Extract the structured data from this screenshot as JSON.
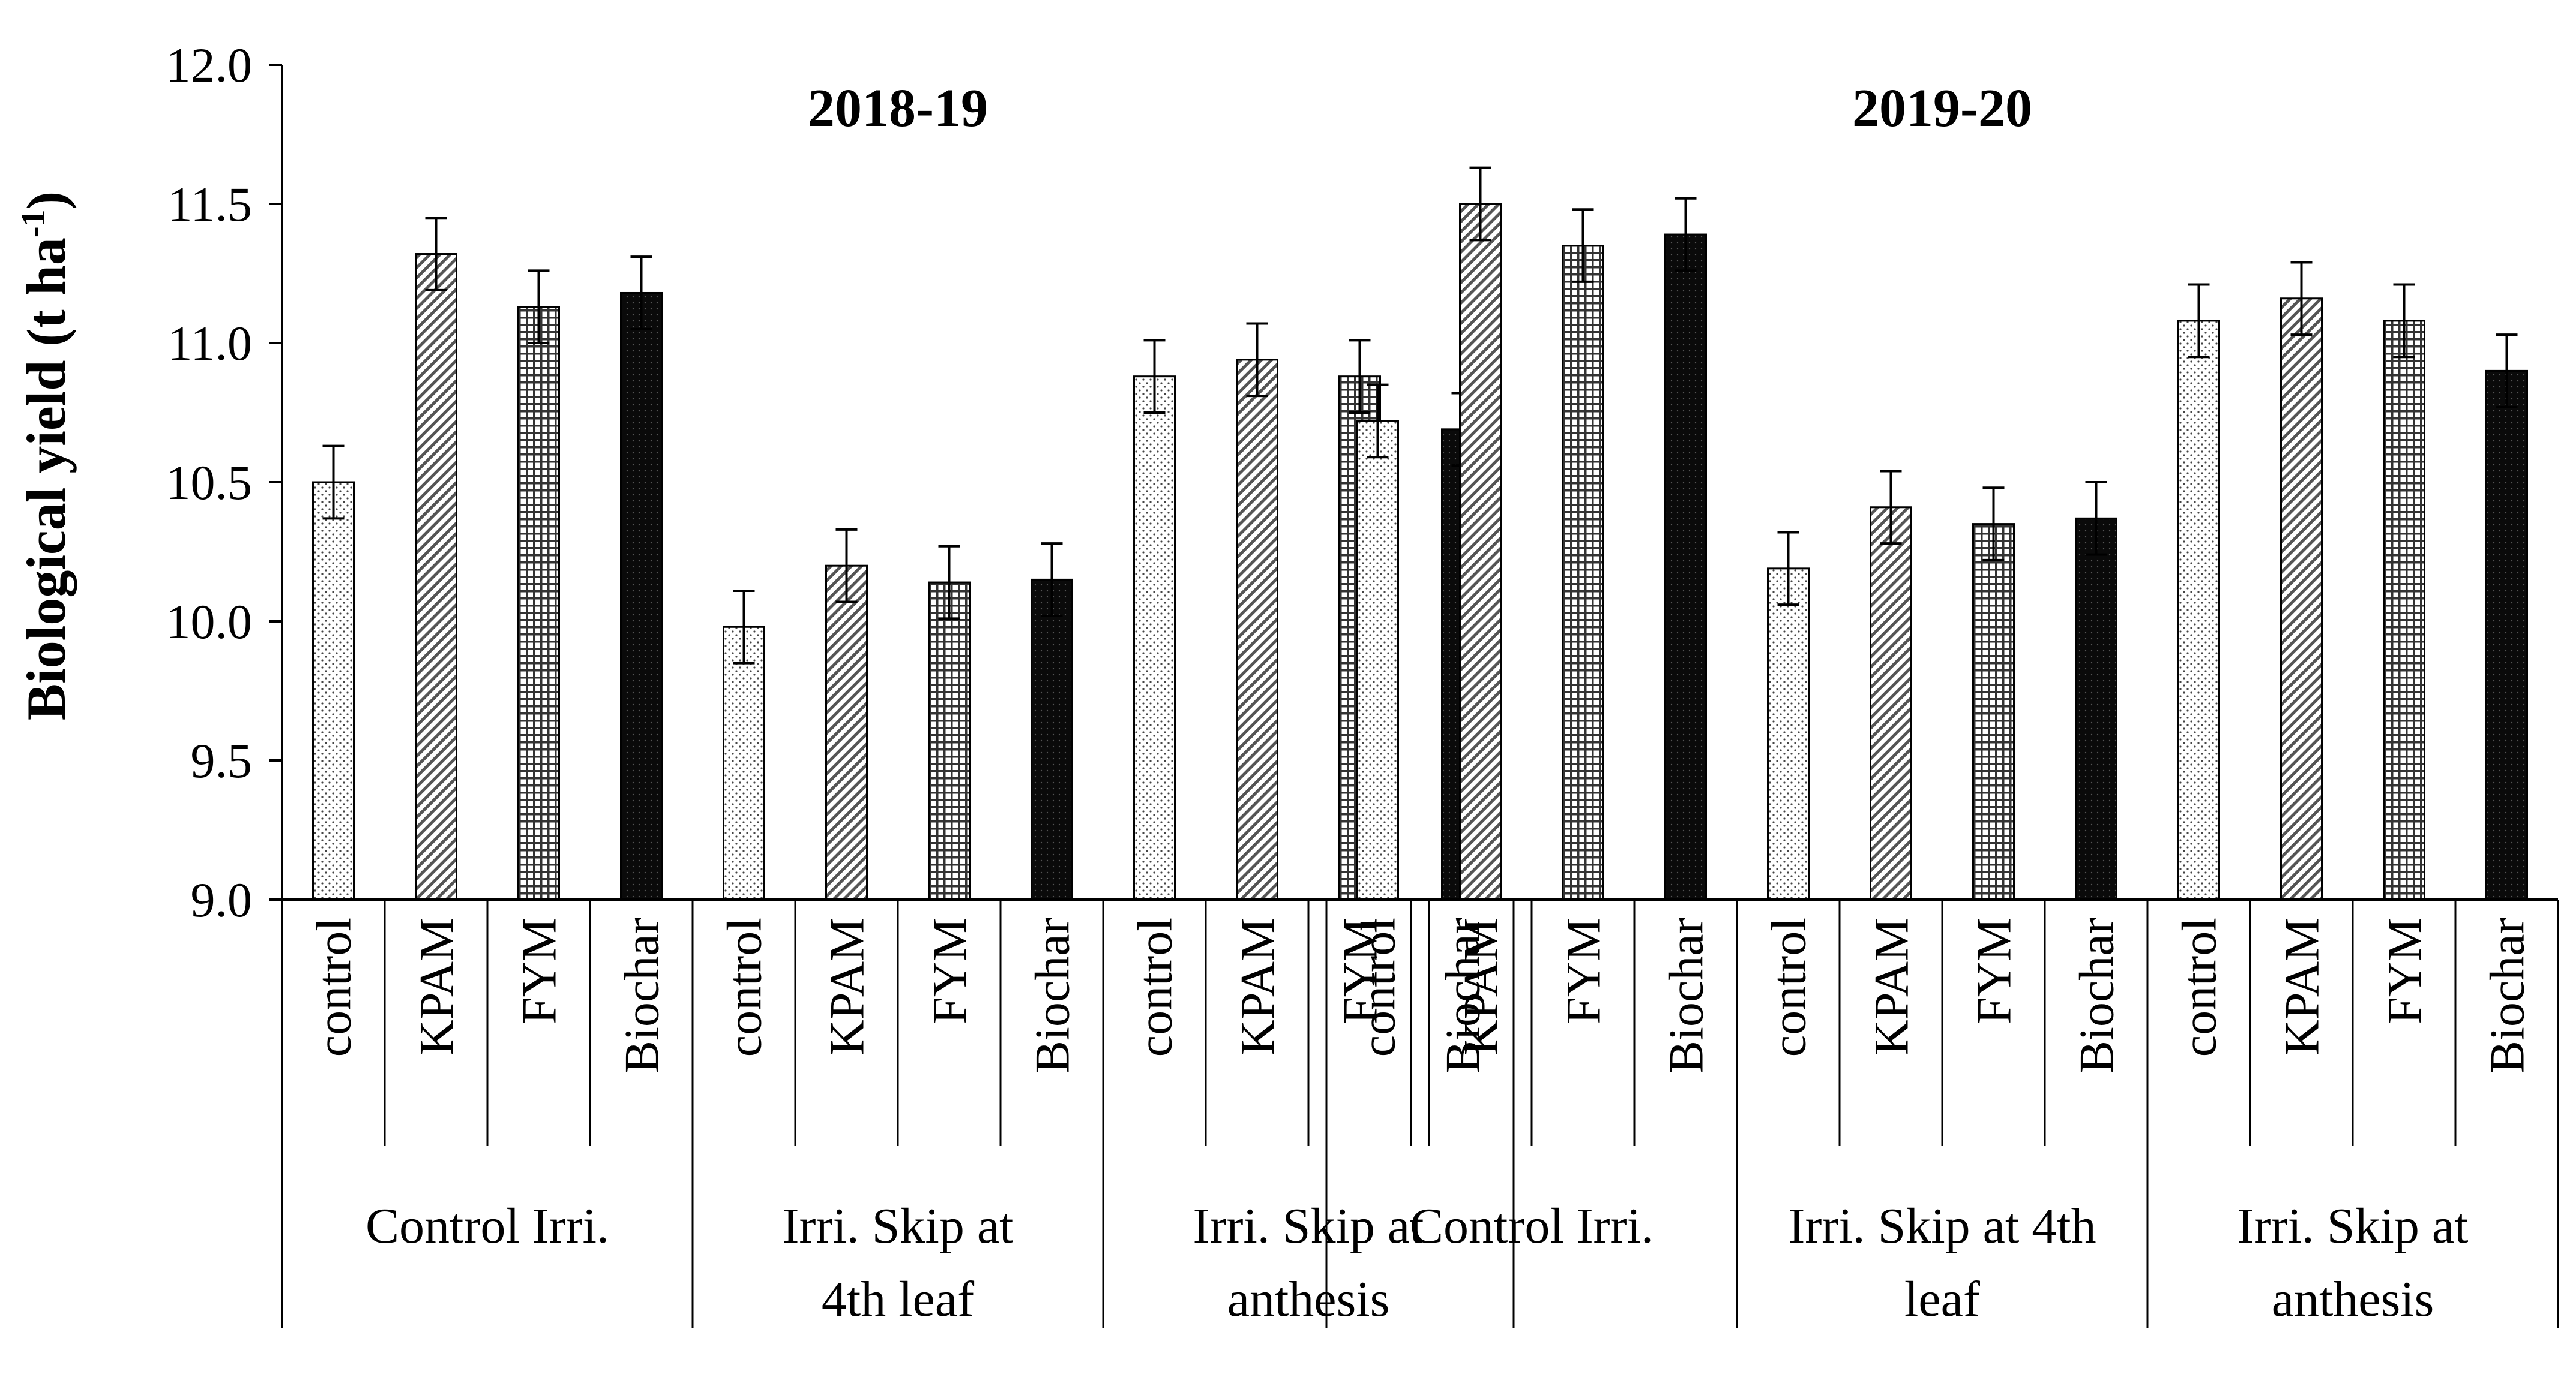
{
  "chart_data": {
    "type": "bar",
    "ylabel": "Biological yield (t ha",
    "ylabel_sup": "-1",
    "ylabel_close": ")",
    "ylim": [
      9.0,
      12.0
    ],
    "yticks": [
      "9.0",
      "9.5",
      "10.0",
      "10.5",
      "11.0",
      "11.5",
      "12.0"
    ],
    "ytick_values": [
      9.0,
      9.5,
      10.0,
      10.5,
      11.0,
      11.5,
      12.0
    ],
    "treatments": [
      "control",
      "KPAM",
      "FYM",
      "Biochar"
    ],
    "panels": [
      {
        "title": "2018-19",
        "groups": [
          {
            "label_lines": [
              "Control Irri."
            ],
            "values": [
              10.5,
              11.32,
              11.13,
              11.18
            ],
            "errors": [
              0.13,
              0.13,
              0.13,
              0.13
            ]
          },
          {
            "label_lines": [
              "Irri. Skip at",
              "4th leaf"
            ],
            "values": [
              9.98,
              10.2,
              10.14,
              10.15
            ],
            "errors": [
              0.13,
              0.13,
              0.13,
              0.13
            ]
          },
          {
            "label_lines": [
              "Irri. Skip at",
              "anthesis"
            ],
            "values": [
              10.88,
              10.94,
              10.88,
              10.69
            ],
            "errors": [
              0.13,
              0.13,
              0.13,
              0.13
            ]
          }
        ]
      },
      {
        "title": "2019-20",
        "groups": [
          {
            "label_lines": [
              "Control Irri."
            ],
            "values": [
              10.72,
              11.5,
              11.35,
              11.39
            ],
            "errors": [
              0.13,
              0.13,
              0.13,
              0.13
            ]
          },
          {
            "label_lines": [
              "Irri. Skip at 4th",
              "leaf"
            ],
            "values": [
              10.19,
              10.41,
              10.35,
              10.37
            ],
            "errors": [
              0.13,
              0.13,
              0.13,
              0.13
            ]
          },
          {
            "label_lines": [
              "Irri. Skip at",
              "anthesis"
            ],
            "values": [
              11.08,
              11.16,
              11.08,
              10.9
            ],
            "errors": [
              0.13,
              0.13,
              0.13,
              0.13
            ]
          }
        ]
      }
    ],
    "fill_patterns": [
      "dots",
      "diagonal",
      "grid",
      "dense-black"
    ]
  }
}
